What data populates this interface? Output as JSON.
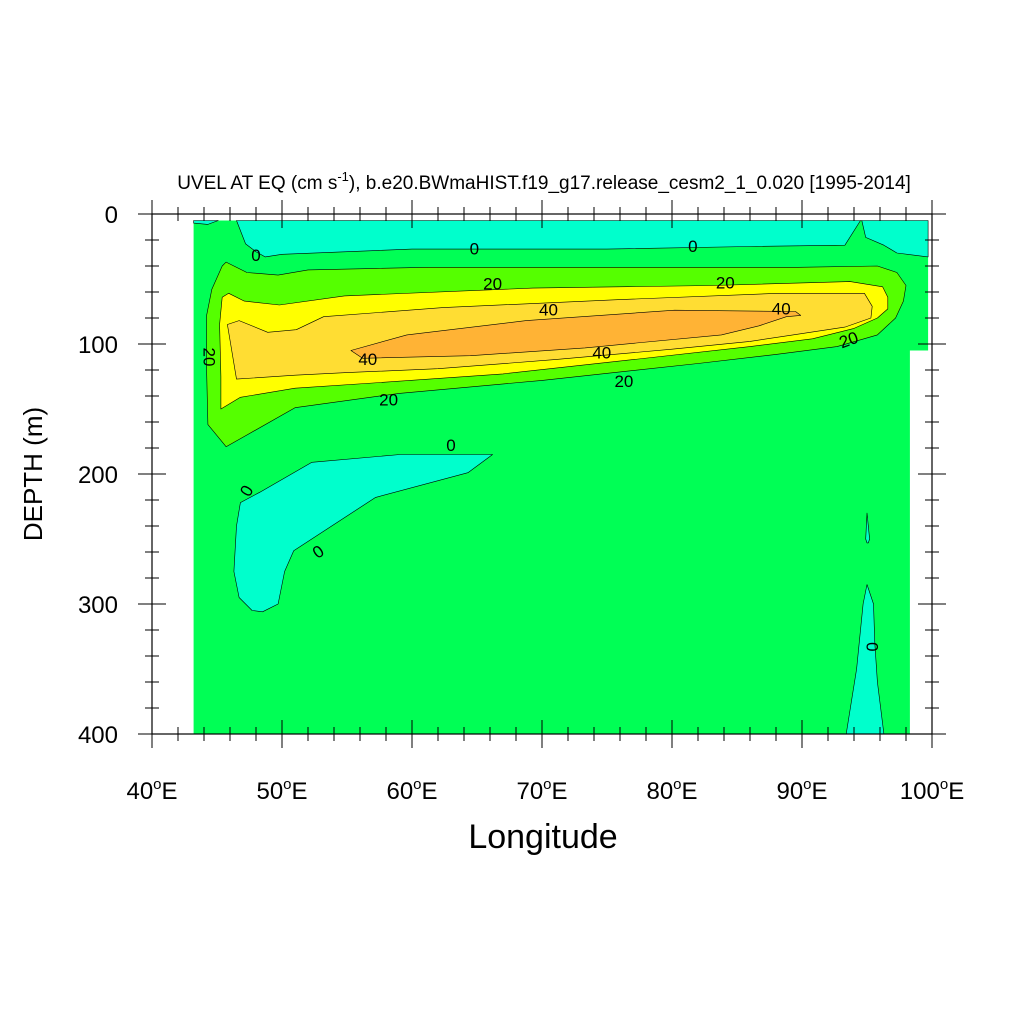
{
  "chart_data": {
    "type": "contour",
    "title": {
      "prefix": "UVEL AT EQ (cm s",
      "superscript": "-1",
      "suffix": "), b.e20.BWmaHIST.f19_g17.release_cesm2_1_0.020 [1995-2014]"
    },
    "xlabel": "Longitude",
    "ylabel": "DEPTH (m)",
    "xlim": [
      40,
      100
    ],
    "ylim": [
      0,
      400
    ],
    "y_inverted": true,
    "x_ticks": [
      {
        "value": 40,
        "label": "40",
        "unit": "o",
        "hemisphere": "E"
      },
      {
        "value": 50,
        "label": "50",
        "unit": "o",
        "hemisphere": "E"
      },
      {
        "value": 60,
        "label": "60",
        "unit": "o",
        "hemisphere": "E"
      },
      {
        "value": 70,
        "label": "70",
        "unit": "o",
        "hemisphere": "E"
      },
      {
        "value": 80,
        "label": "80",
        "unit": "o",
        "hemisphere": "E"
      },
      {
        "value": 90,
        "label": "90",
        "unit": "o",
        "hemisphere": "E"
      },
      {
        "value": 100,
        "label": "100",
        "unit": "o",
        "hemisphere": "E"
      }
    ],
    "y_ticks": [
      {
        "value": 0,
        "label": "0"
      },
      {
        "value": 100,
        "label": "100"
      },
      {
        "value": 200,
        "label": "200"
      },
      {
        "value": 300,
        "label": "300"
      },
      {
        "value": 400,
        "label": "400"
      }
    ],
    "colors": {
      "lt_0": "#00ffcc",
      "0_10": "#00ff55",
      "10_20": "#55ff00",
      "20_30": "#ffff00",
      "30_40": "#ffdd33",
      "gt_40": "#ffb335"
    },
    "contour_labels": [
      {
        "text": "0",
        "lon": 48.0,
        "depth": 32,
        "angle": 0
      },
      {
        "text": "0",
        "lon": 64.8,
        "depth": 27,
        "angle": 0
      },
      {
        "text": "0",
        "lon": 81.6,
        "depth": 25,
        "angle": 0
      },
      {
        "text": "20",
        "lon": 66.2,
        "depth": 54,
        "angle": 0
      },
      {
        "text": "20",
        "lon": 84.1,
        "depth": 53,
        "angle": 0
      },
      {
        "text": "40",
        "lon": 70.5,
        "depth": 74,
        "angle": 0
      },
      {
        "text": "40",
        "lon": 88.4,
        "depth": 73,
        "angle": 0
      },
      {
        "text": "40",
        "lon": 56.6,
        "depth": 112,
        "angle": 0
      },
      {
        "text": "40",
        "lon": 74.6,
        "depth": 107,
        "angle": 0
      },
      {
        "text": "20",
        "lon": 44.4,
        "depth": 110,
        "angle": 90
      },
      {
        "text": "20",
        "lon": 58.2,
        "depth": 143,
        "angle": 0
      },
      {
        "text": "20",
        "lon": 76.3,
        "depth": 129,
        "angle": 0
      },
      {
        "text": "20",
        "lon": 93.6,
        "depth": 97,
        "angle": -20
      },
      {
        "text": "0",
        "lon": 63.0,
        "depth": 178,
        "angle": 0
      },
      {
        "text": "0",
        "lon": 47.3,
        "depth": 213,
        "angle": -60
      },
      {
        "text": "0",
        "lon": 52.8,
        "depth": 260,
        "angle": -35
      },
      {
        "text": "0",
        "lon": 95.4,
        "depth": 333,
        "angle": 90
      }
    ],
    "regions": [
      {
        "level": "0_10",
        "pts": [
          [
            43.2,
            5
          ],
          [
            99.7,
            5
          ],
          [
            99.7,
            105
          ],
          [
            98.3,
            105
          ],
          [
            98.3,
            400
          ],
          [
            43.2,
            400
          ]
        ]
      },
      {
        "level": "lt_0",
        "pts": [
          [
            43.2,
            5
          ],
          [
            43.2,
            7
          ],
          [
            44.3,
            8
          ],
          [
            45.1,
            5
          ]
        ]
      },
      {
        "level": "lt_0",
        "pts": [
          [
            46.5,
            5
          ],
          [
            94.6,
            5
          ],
          [
            94.9,
            18
          ],
          [
            96.3,
            24
          ],
          [
            97.3,
            30
          ],
          [
            99.7,
            33
          ],
          [
            99.7,
            5
          ],
          [
            94.5,
            5
          ],
          [
            93.3,
            24
          ],
          [
            86.0,
            25
          ],
          [
            75.0,
            27
          ],
          [
            60.0,
            27
          ],
          [
            50.0,
            31
          ],
          [
            48.7,
            33
          ],
          [
            48.0,
            29
          ],
          [
            47.2,
            23
          ],
          [
            46.5,
            5
          ]
        ]
      },
      {
        "level": "10_20",
        "pts": [
          [
            45.4,
            40
          ],
          [
            45.7,
            37
          ],
          [
            47.3,
            45
          ],
          [
            49.7,
            47
          ],
          [
            52.0,
            43
          ],
          [
            61.2,
            41
          ],
          [
            71.4,
            41
          ],
          [
            80.8,
            41
          ],
          [
            89.7,
            41
          ],
          [
            95.8,
            40
          ],
          [
            97.3,
            45
          ],
          [
            98.0,
            55
          ],
          [
            97.8,
            67
          ],
          [
            97.2,
            80
          ],
          [
            95.8,
            93
          ],
          [
            92.7,
            102
          ],
          [
            88.0,
            108
          ],
          [
            82.0,
            115
          ],
          [
            70.0,
            128
          ],
          [
            59.0,
            138
          ],
          [
            51.0,
            149
          ],
          [
            47.3,
            170
          ],
          [
            45.7,
            179
          ],
          [
            44.3,
            162
          ],
          [
            44.2,
            120
          ],
          [
            44.2,
            78
          ],
          [
            44.6,
            58
          ]
        ]
      },
      {
        "level": "20_30",
        "pts": [
          [
            45.4,
            64
          ],
          [
            45.9,
            61
          ],
          [
            47.1,
            67
          ],
          [
            49.8,
            70
          ],
          [
            54.8,
            63
          ],
          [
            69.3,
            57
          ],
          [
            83.1,
            55
          ],
          [
            93.7,
            52
          ],
          [
            96.2,
            56
          ],
          [
            96.6,
            64
          ],
          [
            96.6,
            73
          ],
          [
            95.8,
            80
          ],
          [
            94.0,
            88
          ],
          [
            90.8,
            96
          ],
          [
            86.0,
            102
          ],
          [
            77.0,
            112
          ],
          [
            67.0,
            123
          ],
          [
            57.0,
            130
          ],
          [
            51.0,
            134
          ],
          [
            46.8,
            141
          ],
          [
            45.3,
            150
          ],
          [
            45.3,
            125
          ],
          [
            45.2,
            85
          ]
        ]
      },
      {
        "level": "30_40",
        "pts": [
          [
            45.8,
            85
          ],
          [
            46.7,
            82
          ],
          [
            48.9,
            91
          ],
          [
            51.1,
            89
          ],
          [
            53.2,
            79
          ],
          [
            62.4,
            72
          ],
          [
            75.6,
            66
          ],
          [
            88.2,
            61
          ],
          [
            94.8,
            61
          ],
          [
            95.4,
            71
          ],
          [
            95.3,
            80
          ],
          [
            93.3,
            87
          ],
          [
            89.3,
            93
          ],
          [
            86.0,
            98
          ],
          [
            80.0,
            104
          ],
          [
            71.0,
            112
          ],
          [
            62.0,
            119
          ],
          [
            55.0,
            122
          ],
          [
            51.0,
            124
          ],
          [
            46.5,
            127
          ]
        ]
      },
      {
        "level": "gt_40",
        "pts": [
          [
            55.3,
            105
          ],
          [
            59.6,
            93
          ],
          [
            68.8,
            82
          ],
          [
            80.2,
            74
          ],
          [
            89.5,
            75
          ],
          [
            89.9,
            78
          ],
          [
            88.8,
            79
          ],
          [
            86.7,
            86
          ],
          [
            83.8,
            93
          ],
          [
            73.3,
            103
          ],
          [
            64.5,
            109
          ],
          [
            56.2,
            111
          ]
        ]
      },
      {
        "level": "lt_0",
        "pts": [
          [
            48.3,
            214
          ],
          [
            52.3,
            191
          ],
          [
            59.1,
            185
          ],
          [
            65.9,
            185
          ],
          [
            66.2,
            185
          ],
          [
            64.3,
            199
          ],
          [
            57.2,
            218
          ],
          [
            50.9,
            259
          ],
          [
            50.2,
            275
          ],
          [
            49.7,
            300
          ],
          [
            48.5,
            306
          ],
          [
            47.7,
            305
          ],
          [
            46.7,
            295
          ],
          [
            46.3,
            275
          ],
          [
            46.5,
            240
          ],
          [
            46.8,
            222
          ]
        ]
      },
      {
        "level": "lt_0",
        "pts": [
          [
            94.9,
            250
          ],
          [
            95.0,
            230
          ],
          [
            95.2,
            250
          ],
          [
            95.1,
            253
          ],
          [
            95.0,
            253
          ]
        ]
      },
      {
        "level": "lt_0",
        "pts": [
          [
            95.0,
            285
          ],
          [
            95.5,
            300
          ],
          [
            95.6,
            330
          ],
          [
            95.8,
            360
          ],
          [
            96.3,
            400
          ],
          [
            93.4,
            400
          ],
          [
            94.2,
            350
          ],
          [
            94.5,
            320
          ],
          [
            94.7,
            300
          ]
        ]
      }
    ]
  }
}
